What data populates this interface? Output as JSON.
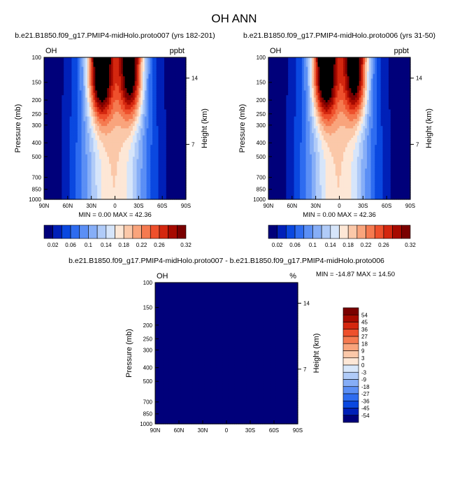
{
  "title": "OH ANN",
  "colors": {
    "palette": [
      "#00007a",
      "#0020b8",
      "#0a48e0",
      "#2e6cf0",
      "#5b8ff5",
      "#86aef7",
      "#b0cbf8",
      "#d6e5fa",
      "#fde7d6",
      "#fbc8a9",
      "#f9a47c",
      "#f57a50",
      "#ee502c",
      "#d4270f",
      "#a60a00",
      "#7a0000"
    ],
    "diff_positive": "#fde6d4",
    "diff_negative": "#d8e7fa"
  },
  "chart_data": [
    {
      "type": "heatmap",
      "title": "b.e21.B1850.f09_g17.PMIP4-midHolo.proto007 (yrs 182-201)",
      "left_label": "OH",
      "right_label": "ppbt",
      "ylabel": "Pressure (mb)",
      "y2label": "Height (km)",
      "xlabel": "",
      "x_ticks": [
        "90N",
        "60N",
        "30N",
        "0",
        "30S",
        "60S",
        "90S"
      ],
      "x_values": [
        90,
        60,
        30,
        0,
        -30,
        -60,
        -90
      ],
      "y_ticks": [
        "100",
        "150",
        "200",
        "250",
        "300",
        "400",
        "500",
        "700",
        "850",
        "1000"
      ],
      "y_values": [
        100,
        150,
        200,
        250,
        300,
        400,
        500,
        700,
        850,
        1000
      ],
      "y2_ticks": [
        "14",
        "7"
      ],
      "ylim": [
        1000,
        100
      ],
      "stats": "MIN =  0.00  MAX =  42.36",
      "min": 0.0,
      "max": 42.36,
      "colorbar_levels": [
        0.02,
        0.04,
        0.06,
        0.08,
        0.1,
        0.12,
        0.14,
        0.16,
        0.18,
        0.2,
        0.22,
        0.24,
        0.26,
        0.28,
        0.3,
        0.32
      ],
      "colorbar_labels": [
        "0.02",
        "0.06",
        "0.1",
        "0.14",
        "0.18",
        "0.22",
        "0.26",
        "0.32"
      ],
      "grid": false
    },
    {
      "type": "heatmap",
      "title": "b.e21.B1850.f09_g17.PMIP4-midHolo.proto006 (yrs 31-50)",
      "left_label": "OH",
      "right_label": "ppbt",
      "ylabel": "Pressure (mb)",
      "y2label": "Height (km)",
      "xlabel": "",
      "x_ticks": [
        "90N",
        "60N",
        "30N",
        "0",
        "30S",
        "60S",
        "90S"
      ],
      "x_values": [
        90,
        60,
        30,
        0,
        -30,
        -60,
        -90
      ],
      "y_ticks": [
        "100",
        "150",
        "200",
        "250",
        "300",
        "400",
        "500",
        "700",
        "850",
        "1000"
      ],
      "y_values": [
        100,
        150,
        200,
        250,
        300,
        400,
        500,
        700,
        850,
        1000
      ],
      "y2_ticks": [
        "14",
        "7"
      ],
      "ylim": [
        1000,
        100
      ],
      "stats": "MIN =  0.00  MAX =  42.36",
      "min": 0.0,
      "max": 42.36,
      "colorbar_levels": [
        0.02,
        0.04,
        0.06,
        0.08,
        0.1,
        0.12,
        0.14,
        0.16,
        0.18,
        0.2,
        0.22,
        0.24,
        0.26,
        0.28,
        0.3,
        0.32
      ],
      "colorbar_labels": [
        "0.02",
        "0.06",
        "0.1",
        "0.14",
        "0.18",
        "0.22",
        "0.26",
        "0.32"
      ],
      "grid": false
    },
    {
      "type": "heatmap",
      "title": "b.e21.B1850.f09_g17.PMIP4-midHolo.proto007 - b.e21.B1850.f09_g17.PMIP4-midHolo.proto006",
      "left_label": "OH",
      "right_label": "%",
      "ylabel": "Pressure (mb)",
      "y2label": "Height (km)",
      "xlabel": "",
      "x_ticks": [
        "90N",
        "60N",
        "30N",
        "0",
        "30S",
        "60S",
        "90S"
      ],
      "x_values": [
        90,
        60,
        30,
        0,
        -30,
        -60,
        -90
      ],
      "y_ticks": [
        "100",
        "150",
        "200",
        "250",
        "300",
        "400",
        "500",
        "700",
        "850",
        "1000"
      ],
      "y_values": [
        100,
        150,
        200,
        250,
        300,
        400,
        500,
        700,
        850,
        1000
      ],
      "y2_ticks": [
        "14",
        "7"
      ],
      "ylim": [
        1000,
        100
      ],
      "stats": "MIN = -14.87  MAX =  14.50",
      "min": -14.87,
      "max": 14.5,
      "colorbar_levels": [
        54,
        45,
        36,
        27,
        18,
        9,
        3,
        0,
        -3,
        -9,
        -18,
        -27,
        -36,
        -45,
        -54
      ],
      "colorbar_labels": [
        "54",
        "45",
        "36",
        "27",
        "18",
        "9",
        "3",
        "0",
        "-3",
        "-9",
        "-18",
        "-27",
        "-36",
        "-45",
        "-54"
      ],
      "grid": false
    }
  ]
}
